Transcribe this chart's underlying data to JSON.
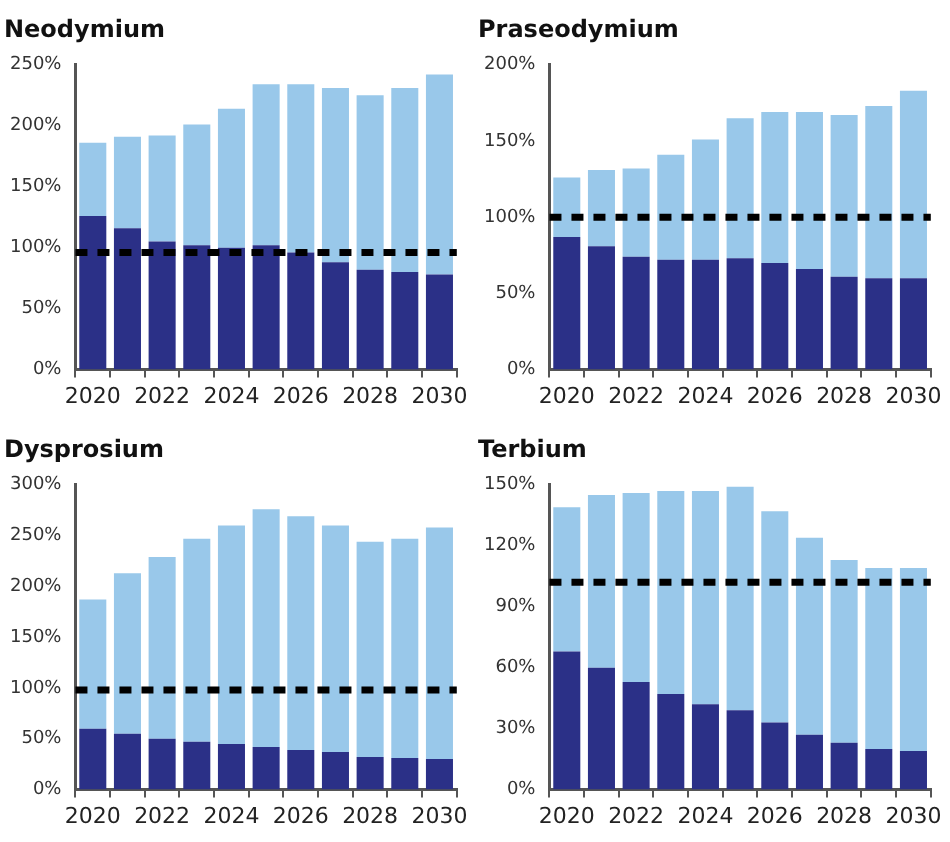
{
  "chart_data": [
    {
      "type": "bar",
      "title": "Neodymium",
      "stacked": true,
      "categories": [
        "2020",
        null,
        "2022",
        null,
        "2024",
        null,
        "2026",
        null,
        "2028",
        null,
        "2030"
      ],
      "series": [
        {
          "color": "#2b3087",
          "values": [
            126,
            116,
            105,
            102,
            100,
            102,
            96,
            88,
            82,
            80,
            78
          ]
        },
        {
          "color": "#99c8ea",
          "values": [
            60,
            75,
            87,
            99,
            114,
            132,
            138,
            143,
            143,
            151,
            164
          ]
        }
      ],
      "ylim": [
        0,
        250
      ],
      "yticks": [
        {
          "value": 0,
          "label": "0%"
        },
        {
          "value": 50,
          "label": "50%"
        },
        {
          "value": 100,
          "label": "100%"
        },
        {
          "value": 150,
          "label": "150%"
        },
        {
          "value": 200,
          "label": "200%"
        },
        {
          "value": 250,
          "label": "250%"
        }
      ],
      "ref_lines": [
        {
          "axis": "y",
          "value": 96,
          "color": "#000000",
          "line_style": "dashed"
        }
      ]
    },
    {
      "type": "bar",
      "title": "Praseodymium",
      "stacked": true,
      "categories": [
        "2020",
        null,
        "2022",
        null,
        "2024",
        null,
        "2026",
        null,
        "2028",
        null,
        "2030"
      ],
      "series": [
        {
          "color": "#2b3087",
          "values": [
            87,
            81,
            74,
            72,
            72,
            73,
            70,
            66,
            61,
            60,
            60
          ]
        },
        {
          "color": "#99c8ea",
          "values": [
            39,
            50,
            58,
            69,
            79,
            92,
            99,
            103,
            106,
            113,
            123
          ]
        }
      ],
      "ylim": [
        0,
        200
      ],
      "yticks": [
        {
          "value": 0,
          "label": "0%"
        },
        {
          "value": 50,
          "label": "50%"
        },
        {
          "value": 100,
          "label": "100%"
        },
        {
          "value": 150,
          "label": "150%"
        },
        {
          "value": 200,
          "label": "200%"
        }
      ],
      "ref_lines": [
        {
          "axis": "y",
          "value": 100,
          "color": "#000000",
          "line_style": "dashed"
        }
      ]
    },
    {
      "type": "bar",
      "title": "Dysprosium",
      "stacked": true,
      "categories": [
        "2020",
        null,
        "2022",
        null,
        "2024",
        null,
        "2026",
        null,
        "2028",
        null,
        "2030"
      ],
      "series": [
        {
          "color": "#2b3087",
          "values": [
            60,
            55,
            50,
            47,
            45,
            42,
            39,
            37,
            32,
            31,
            30
          ]
        },
        {
          "color": "#99c8ea",
          "values": [
            127,
            158,
            179,
            200,
            215,
            234,
            230,
            223,
            212,
            216,
            228
          ]
        }
      ],
      "ylim": [
        0,
        300
      ],
      "yticks": [
        {
          "value": 0,
          "label": "0%"
        },
        {
          "value": 50,
          "label": "50%"
        },
        {
          "value": 100,
          "label": "100%"
        },
        {
          "value": 150,
          "label": "150%"
        },
        {
          "value": 200,
          "label": "200%"
        },
        {
          "value": 250,
          "label": "250%"
        },
        {
          "value": 300,
          "label": "300%"
        }
      ],
      "ref_lines": [
        {
          "axis": "y",
          "value": 98,
          "color": "#000000",
          "line_style": "dashed"
        }
      ]
    },
    {
      "type": "bar",
      "title": "Terbium",
      "stacked": true,
      "categories": [
        "2020",
        null,
        "2022",
        null,
        "2024",
        null,
        "2026",
        null,
        "2028",
        null,
        "2030"
      ],
      "series": [
        {
          "color": "#2b3087",
          "values": [
            68,
            60,
            53,
            47,
            42,
            39,
            33,
            27,
            23,
            20,
            19
          ]
        },
        {
          "color": "#99c8ea",
          "values": [
            71,
            85,
            93,
            100,
            105,
            110,
            104,
            97,
            90,
            89,
            90
          ]
        }
      ],
      "ylim": [
        0,
        150
      ],
      "yticks": [
        {
          "value": 0,
          "label": "0%"
        },
        {
          "value": 30,
          "label": "30%"
        },
        {
          "value": 60,
          "label": "60%"
        },
        {
          "value": 90,
          "label": "90%"
        },
        {
          "value": 120,
          "label": "120%"
        },
        {
          "value": 150,
          "label": "150%"
        }
      ],
      "ref_lines": [
        {
          "axis": "y",
          "value": 102,
          "color": "#000000",
          "line_style": "dashed"
        }
      ]
    }
  ]
}
